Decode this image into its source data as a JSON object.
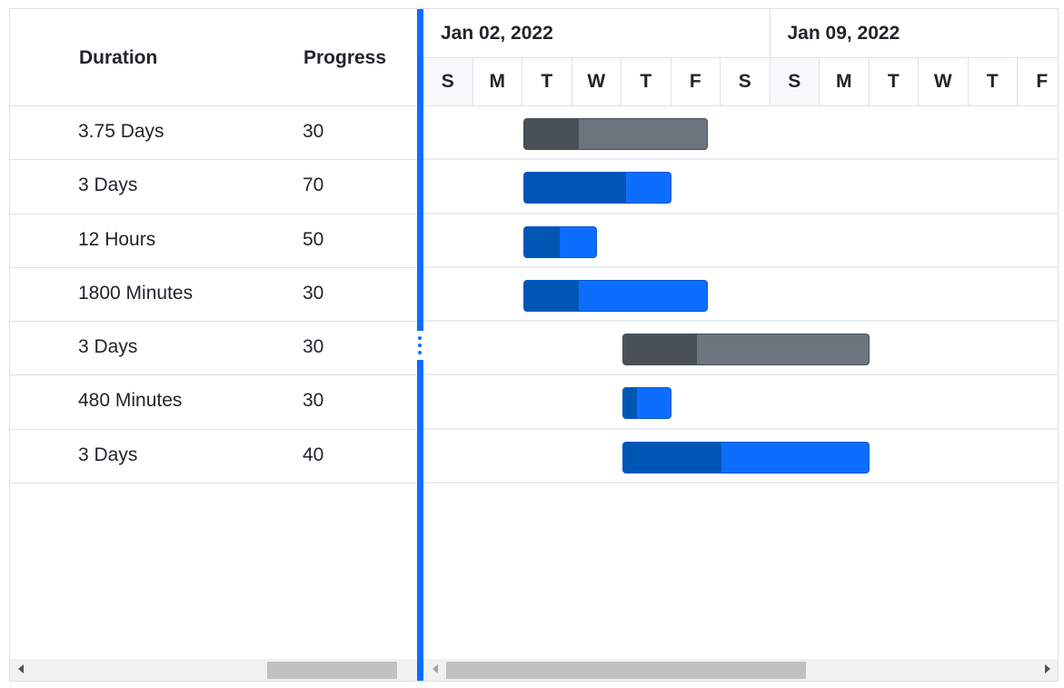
{
  "grid": {
    "columns": {
      "duration": "Duration",
      "progress": "Progress"
    },
    "rows": [
      {
        "duration": "3.75 Days",
        "progress": "30"
      },
      {
        "duration": "3 Days",
        "progress": "70"
      },
      {
        "duration": "12 Hours",
        "progress": "50"
      },
      {
        "duration": "1800 Minutes",
        "progress": "30"
      },
      {
        "duration": "3 Days",
        "progress": "30"
      },
      {
        "duration": "480 Minutes",
        "progress": "30"
      },
      {
        "duration": "3 Days",
        "progress": "40"
      }
    ]
  },
  "timeline": {
    "weeks": [
      "Jan 02, 2022",
      "Jan 09, 2022"
    ],
    "days": [
      "S",
      "M",
      "T",
      "W",
      "T",
      "F",
      "S",
      "S",
      "M",
      "T",
      "W",
      "T",
      "F"
    ]
  },
  "tasks": [
    {
      "start_day": 2,
      "duration_days": 3.75,
      "progress": 0.3,
      "style": "secondary"
    },
    {
      "start_day": 2,
      "duration_days": 3,
      "progress": 0.7,
      "style": "primary"
    },
    {
      "start_day": 2,
      "duration_days": 1.5,
      "progress": 0.5,
      "style": "primary"
    },
    {
      "start_day": 2,
      "duration_days": 3.75,
      "progress": 0.3,
      "style": "primary"
    },
    {
      "start_day": 4,
      "duration_days": 5,
      "progress": 0.3,
      "style": "secondary"
    },
    {
      "start_day": 4,
      "duration_days": 1,
      "progress": 0.3,
      "style": "primary"
    },
    {
      "start_day": 4,
      "duration_days": 5,
      "progress": 0.4,
      "style": "primary"
    }
  ],
  "colors": {
    "primary": "#0d6efd",
    "primary_progress": "#0056b3",
    "secondary": "#6c757d",
    "secondary_progress": "#495057",
    "splitter": "#0d6efd"
  }
}
